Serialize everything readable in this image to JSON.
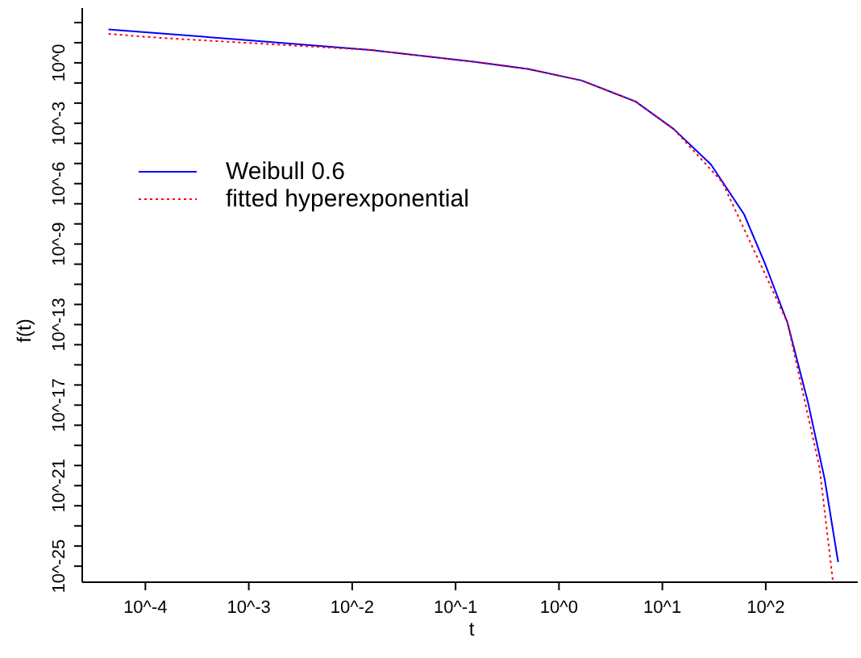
{
  "chart_data": {
    "type": "line",
    "xlabel": "t",
    "ylabel": "f(t)",
    "log": "xy",
    "legend": "top left",
    "marker": "none",
    "xlim": [
      2.45e-05,
      776
    ],
    "ylim": [
      1.6e-26,
      525
    ],
    "xticks": [
      {
        "value": 0.0001,
        "label": "10^-4"
      },
      {
        "value": 0.001,
        "label": "10^-3"
      },
      {
        "value": 0.01,
        "label": "10^-2"
      },
      {
        "value": 0.1,
        "label": "10^-1"
      },
      {
        "value": 1,
        "label": "10^0"
      },
      {
        "value": 10,
        "label": "10^1"
      },
      {
        "value": 100,
        "label": "10^2"
      }
    ],
    "yticks": [
      {
        "value": 100.0,
        "label": null
      },
      {
        "value": 10.0,
        "label": null
      },
      {
        "value": 1,
        "label": "10^0"
      },
      {
        "value": 0.1,
        "label": null
      },
      {
        "value": 0.01,
        "label": null
      },
      {
        "value": 0.001,
        "label": "10^-3"
      },
      {
        "value": 0.0001,
        "label": null
      },
      {
        "value": 1e-05,
        "label": null
      },
      {
        "value": 1e-06,
        "label": "10^-6"
      },
      {
        "value": 1e-07,
        "label": null
      },
      {
        "value": 1e-08,
        "label": null
      },
      {
        "value": 1e-09,
        "label": "10^-9"
      },
      {
        "value": 1e-10,
        "label": null
      },
      {
        "value": 1e-11,
        "label": null
      },
      {
        "value": 1e-12,
        "label": null
      },
      {
        "value": 1e-13,
        "label": "10^-13"
      },
      {
        "value": 1e-14,
        "label": null
      },
      {
        "value": 1e-15,
        "label": null
      },
      {
        "value": 1e-16,
        "label": null
      },
      {
        "value": 1e-17,
        "label": "10^-17"
      },
      {
        "value": 1e-18,
        "label": null
      },
      {
        "value": 1e-19,
        "label": null
      },
      {
        "value": 1e-20,
        "label": null
      },
      {
        "value": 1e-21,
        "label": "10^-21"
      },
      {
        "value": 1e-22,
        "label": null
      },
      {
        "value": 1e-23,
        "label": null
      },
      {
        "value": 1e-24,
        "label": null
      },
      {
        "value": 1e-25,
        "label": "10^-25"
      }
    ],
    "series": [
      {
        "name": "Weibull 0.6",
        "color": "#0000ff",
        "line_style": "solid",
        "x": [
          4.4e-05,
          0.00085,
          0.0151,
          0.148,
          0.5,
          1.66,
          5.5,
          12.9,
          29.5,
          61.7,
          97.7,
          162,
          257,
          372,
          501
        ],
        "values": [
          45.7,
          14.1,
          4.37,
          1.15,
          0.5,
          0.132,
          0.012,
          0.00051,
          8.9e-06,
          3e-08,
          1.15e-10,
          1.26e-13,
          1.26e-17,
          2e-21,
          1.6e-25
        ]
      },
      {
        "name": "fitted hyperexponential",
        "color": "#ff0000",
        "line_style": "dotted",
        "x": [
          4.4e-05,
          0.000138,
          0.0151,
          0.148,
          0.5,
          1.66,
          5.5,
          12.9,
          38,
          79.4,
          162,
          331,
          447
        ],
        "values": [
          27.5,
          17.4,
          4.37,
          1.15,
          0.5,
          0.132,
          0.012,
          0.00051,
          1.17e-06,
          3.5e-10,
          1.26e-13,
          7.9e-21,
          1.6e-26
        ]
      }
    ]
  }
}
